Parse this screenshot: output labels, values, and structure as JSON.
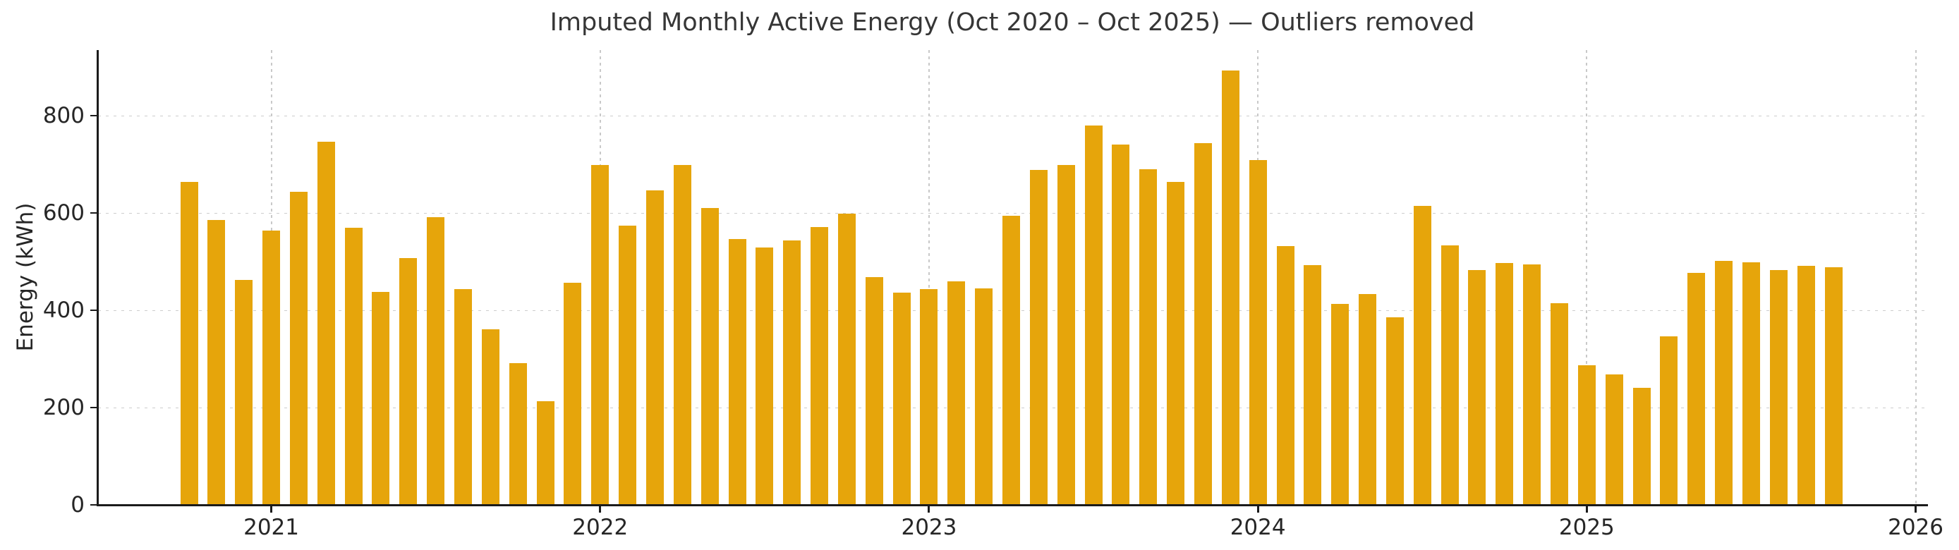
{
  "chart_data": {
    "type": "bar",
    "title": "Imputed Monthly Active Energy (Oct 2020 – Oct 2025) — Outliers removed",
    "xlabel": "",
    "ylabel": "Energy (kWh)",
    "bar_color": "#E6A50B",
    "grid": true,
    "gridline_color": "#cdcdcd",
    "background": "#ffffff",
    "ylim": [
      0,
      935
    ],
    "yticks": [
      0,
      200,
      400,
      600,
      800
    ],
    "xticks": [
      "2021",
      "2022",
      "2023",
      "2024",
      "2025",
      "2026"
    ],
    "x": [
      "2020-10",
      "2020-11",
      "2020-12",
      "2021-01",
      "2021-02",
      "2021-03",
      "2021-04",
      "2021-05",
      "2021-06",
      "2021-07",
      "2021-08",
      "2021-09",
      "2021-10",
      "2021-11",
      "2021-12",
      "2022-01",
      "2022-02",
      "2022-03",
      "2022-04",
      "2022-05",
      "2022-06",
      "2022-07",
      "2022-08",
      "2022-09",
      "2022-10",
      "2022-11",
      "2022-12",
      "2023-01",
      "2023-02",
      "2023-03",
      "2023-04",
      "2023-05",
      "2023-06",
      "2023-07",
      "2023-08",
      "2023-09",
      "2023-10",
      "2023-11",
      "2023-12",
      "2024-01",
      "2024-02",
      "2024-03",
      "2024-04",
      "2024-05",
      "2024-06",
      "2024-07",
      "2024-08",
      "2024-09",
      "2024-10",
      "2024-11",
      "2024-12",
      "2025-01",
      "2025-02",
      "2025-03",
      "2025-04",
      "2025-05",
      "2025-06",
      "2025-07",
      "2025-08",
      "2025-09",
      "2025-10"
    ],
    "values": [
      664,
      586,
      462,
      564,
      643,
      746,
      569,
      438,
      507,
      592,
      443,
      361,
      291,
      213,
      456,
      698,
      574,
      647,
      699,
      611,
      546,
      529,
      544,
      571,
      599,
      468,
      437,
      443,
      459,
      445,
      594,
      689,
      699,
      780,
      741,
      690,
      664,
      744,
      893,
      709,
      532,
      493,
      413,
      434,
      386,
      614,
      533,
      482,
      497,
      495,
      414,
      287,
      268,
      241,
      347,
      477,
      501,
      498,
      483,
      491,
      488
    ]
  }
}
